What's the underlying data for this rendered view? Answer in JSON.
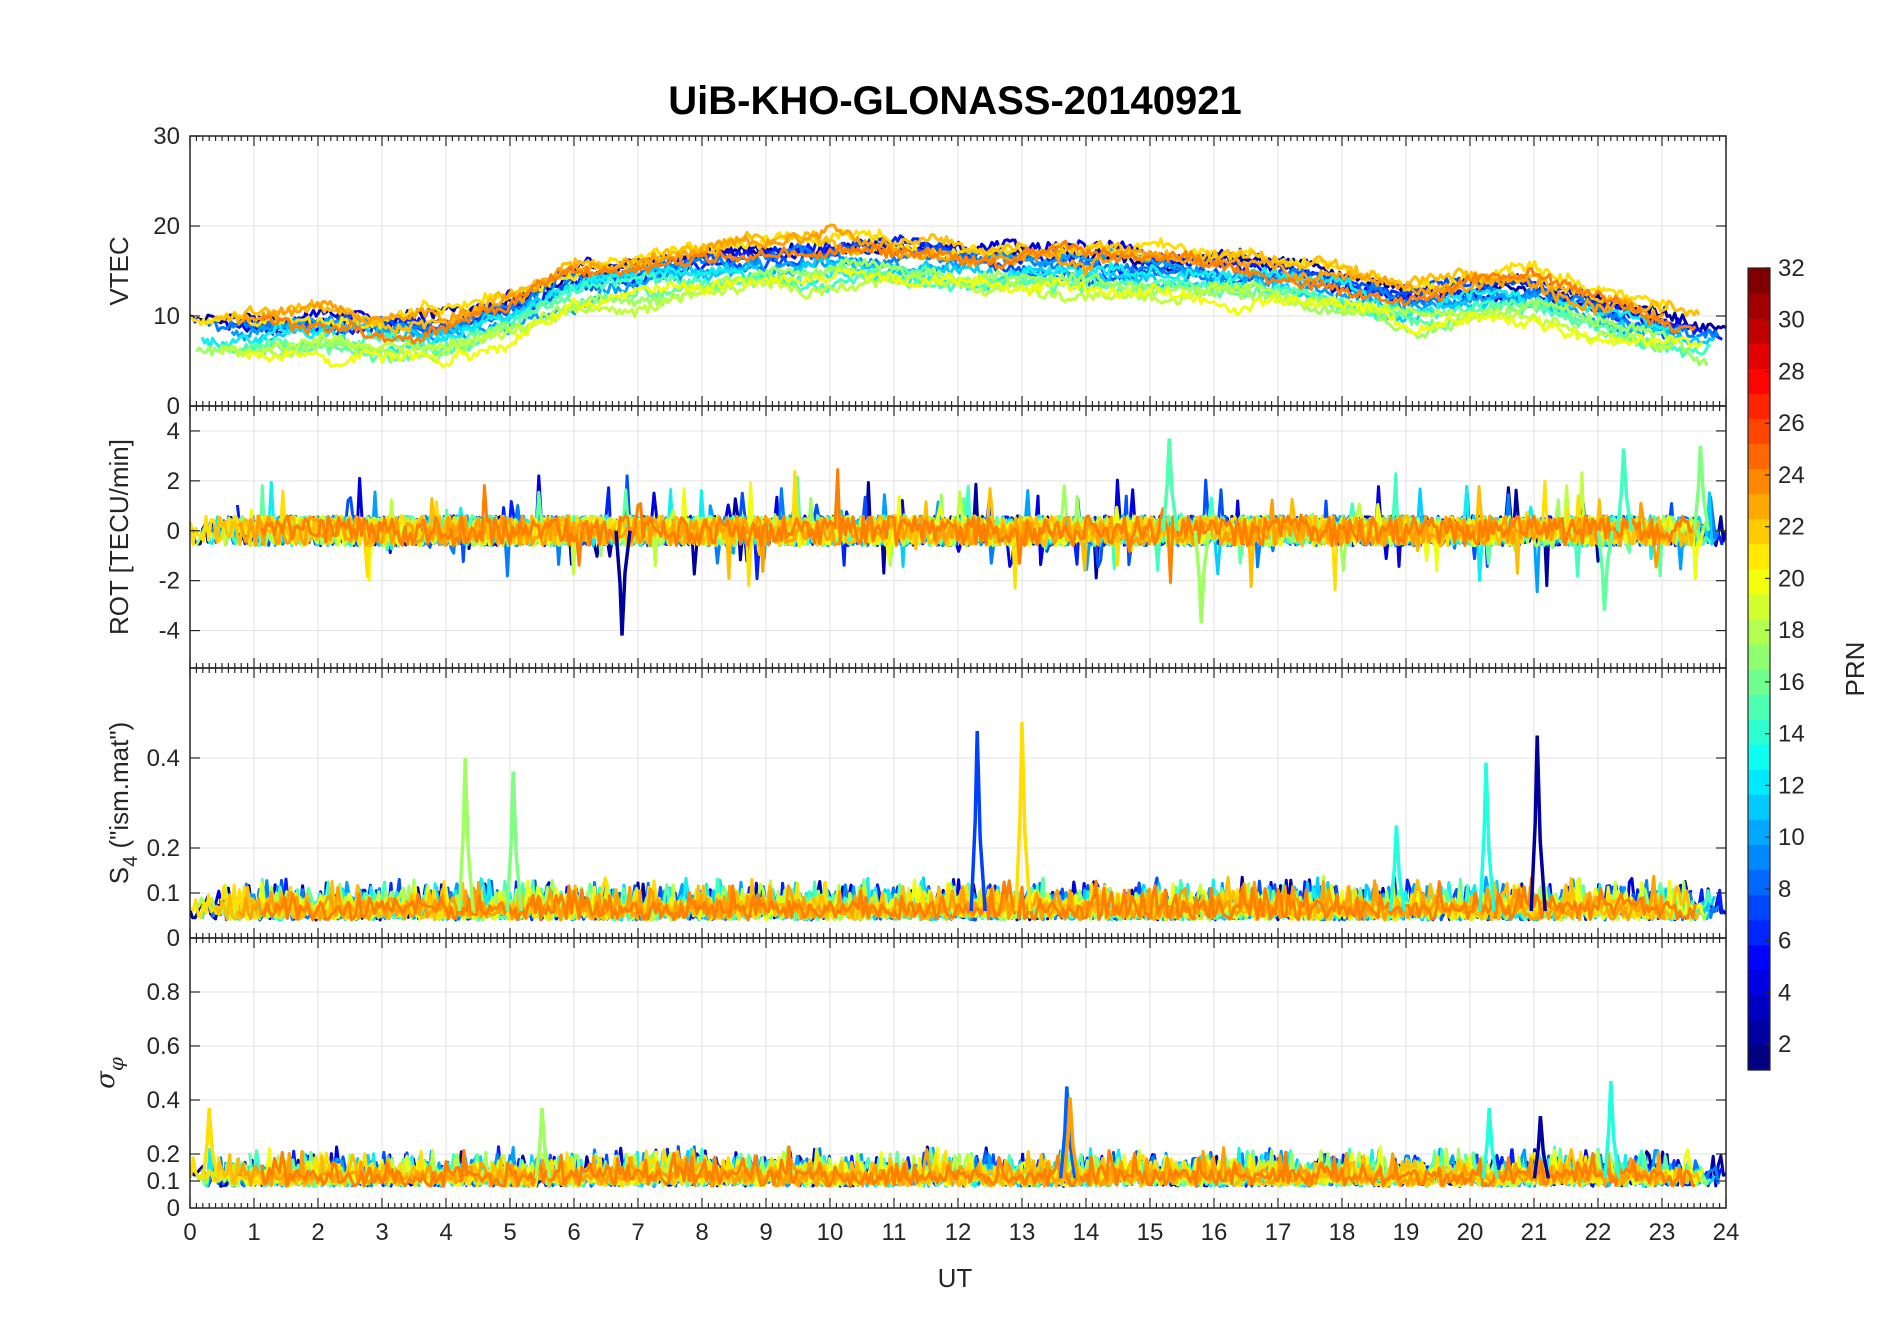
{
  "chart_data": {
    "type": "line",
    "title": "UiB-KHO-GLONASS-20140921",
    "xlabel": "UT",
    "xlim": [
      0,
      24
    ],
    "xticks": [
      "0",
      "1",
      "2",
      "3",
      "4",
      "5",
      "6",
      "7",
      "8",
      "9",
      "10",
      "11",
      "12",
      "13",
      "14",
      "15",
      "16",
      "17",
      "18",
      "19",
      "20",
      "21",
      "22",
      "23",
      "24"
    ],
    "grid": true,
    "panels": [
      {
        "id": "vtec",
        "ylabel": "VTEC",
        "ylim": [
          0,
          30
        ],
        "yticks": [
          "0",
          "10",
          "20",
          "30"
        ],
        "ytick_values": [
          0,
          10,
          20,
          30
        ],
        "baseline": 5,
        "noise": 1.0,
        "envelope": [
          [
            0,
            8
          ],
          [
            1,
            8
          ],
          [
            2,
            8.5
          ],
          [
            3,
            8
          ],
          [
            4,
            8
          ],
          [
            5,
            10
          ],
          [
            6,
            13
          ],
          [
            7,
            14
          ],
          [
            8,
            15
          ],
          [
            9,
            15.5
          ],
          [
            10,
            16
          ],
          [
            11,
            16
          ],
          [
            12,
            15.5
          ],
          [
            13,
            15.5
          ],
          [
            14,
            15
          ],
          [
            15,
            15
          ],
          [
            16,
            14.5
          ],
          [
            17,
            14
          ],
          [
            18,
            13
          ],
          [
            19,
            11
          ],
          [
            20,
            12
          ],
          [
            21,
            12
          ],
          [
            22,
            10
          ],
          [
            23,
            8.5
          ],
          [
            24,
            7
          ]
        ],
        "spikes": []
      },
      {
        "id": "rot",
        "ylabel": "ROT [TECU/min]",
        "ylim": [
          -5.5,
          5
        ],
        "yticks": [
          "-4",
          "-2",
          "0",
          "2",
          "4"
        ],
        "ytick_values": [
          -4,
          -2,
          0,
          2,
          4
        ],
        "baseline": 0,
        "noise": 0.6,
        "envelope": [],
        "spikes": [
          {
            "x": 6.75,
            "y": -4.2,
            "color": "#00009F"
          },
          {
            "x": 15.3,
            "y": 3.7,
            "color": "#50FFAF"
          },
          {
            "x": 15.8,
            "y": -3.7,
            "color": "#9FFF60"
          },
          {
            "x": 22.4,
            "y": 3.3,
            "color": "#40FFBF"
          },
          {
            "x": 22.1,
            "y": -3.2,
            "color": "#60FF9F"
          },
          {
            "x": 23.6,
            "y": 3.4,
            "color": "#80FF80"
          }
        ]
      },
      {
        "id": "s4",
        "ylabel": "S4 (\"ism.mat\")",
        "ylabel_main": "S",
        "ylabel_sub": "4",
        "ylabel_rest": " (\"ism.mat\")",
        "ylim": [
          0,
          0.6
        ],
        "yticks": [
          "0",
          "0.1",
          "0.2",
          "0.4"
        ],
        "ytick_values": [
          0,
          0.1,
          0.2,
          0.4
        ],
        "baseline": 0.06,
        "noise": 0.02,
        "envelope": [],
        "spikes": [
          {
            "x": 4.3,
            "y": 0.4,
            "color": "#9FFF60"
          },
          {
            "x": 5.05,
            "y": 0.37,
            "color": "#7FFF80"
          },
          {
            "x": 12.3,
            "y": 0.46,
            "color": "#0040FF"
          },
          {
            "x": 13.0,
            "y": 0.48,
            "color": "#FFDF00"
          },
          {
            "x": 20.25,
            "y": 0.39,
            "color": "#20FFDF"
          },
          {
            "x": 21.05,
            "y": 0.45,
            "color": "#00009F"
          },
          {
            "x": 18.85,
            "y": 0.25,
            "color": "#20FFDF"
          }
        ]
      },
      {
        "id": "sigma",
        "ylabel": "σφ",
        "ylabel_main": "σ",
        "ylabel_sub": "φ",
        "ylim": [
          0,
          1
        ],
        "yticks": [
          "0",
          "0.1",
          "0.2",
          "0.4",
          "0.6",
          "0.8"
        ],
        "ytick_values": [
          0,
          0.1,
          0.2,
          0.4,
          0.6,
          0.8
        ],
        "baseline": 0.11,
        "noise": 0.03,
        "envelope": [],
        "spikes": [
          {
            "x": 0.3,
            "y": 0.37,
            "color": "#FFDF00"
          },
          {
            "x": 5.5,
            "y": 0.37,
            "color": "#9FFF60"
          },
          {
            "x": 13.7,
            "y": 0.45,
            "color": "#0060FF"
          },
          {
            "x": 13.75,
            "y": 0.41,
            "color": "#FF9F00"
          },
          {
            "x": 22.2,
            "y": 0.47,
            "color": "#20FFDF"
          },
          {
            "x": 20.3,
            "y": 0.37,
            "color": "#20FFDF"
          },
          {
            "x": 21.1,
            "y": 0.34,
            "color": "#00009F"
          }
        ]
      }
    ],
    "series": [
      {
        "prn": 1,
        "color": "#00009F"
      },
      {
        "prn": 3,
        "color": "#0000DF"
      },
      {
        "prn": 4,
        "color": "#0020FF"
      },
      {
        "prn": 6,
        "color": "#0050FF"
      },
      {
        "prn": 8,
        "color": "#0080FF"
      },
      {
        "prn": 9,
        "color": "#00A0FF"
      },
      {
        "prn": 11,
        "color": "#00CFFF"
      },
      {
        "prn": 12,
        "color": "#10EFEF"
      },
      {
        "prn": 13,
        "color": "#40FFBF"
      },
      {
        "prn": 15,
        "color": "#60FF9F"
      },
      {
        "prn": 17,
        "color": "#9FFF60"
      },
      {
        "prn": 18,
        "color": "#BFFF40"
      },
      {
        "prn": 20,
        "color": "#EFFF10"
      },
      {
        "prn": 21,
        "color": "#FFDF00"
      },
      {
        "prn": 22,
        "color": "#FFBF00"
      },
      {
        "prn": 23,
        "color": "#FF9F00"
      },
      {
        "prn": 24,
        "color": "#FF7F00"
      }
    ],
    "colorbar": {
      "label": "PRN",
      "range": [
        1,
        32
      ],
      "ticks": [
        "2",
        "4",
        "6",
        "8",
        "10",
        "12",
        "14",
        "16",
        "18",
        "20",
        "22",
        "24",
        "26",
        "28",
        "30",
        "32"
      ],
      "tick_values": [
        2,
        4,
        6,
        8,
        10,
        12,
        14,
        16,
        18,
        20,
        22,
        24,
        26,
        28,
        30,
        32
      ],
      "colormap": "jet"
    }
  }
}
